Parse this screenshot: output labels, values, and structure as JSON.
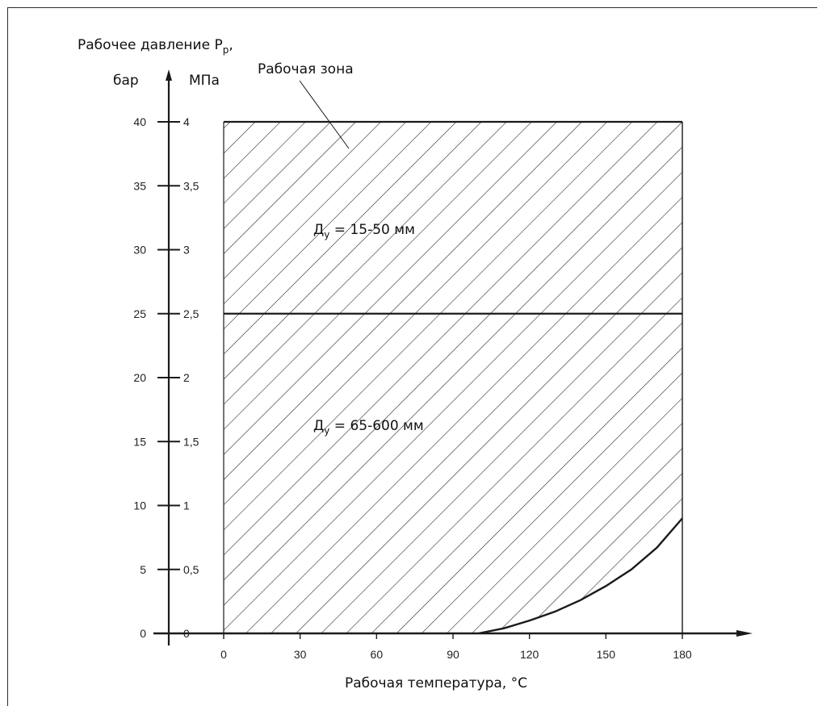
{
  "chart_data": {
    "type": "area",
    "y_axis_title": "Рабочее давление P",
    "y_axis_title_sub": "p",
    "y_axis_title_suffix": ",",
    "y_unit_left": "бар",
    "y_unit_right": "МПа",
    "x_axis_title": "Рабочая температура, °C",
    "zone_label": "Рабочая зона",
    "y_ticks_bar": [
      "0",
      "5",
      "10",
      "15",
      "20",
      "25",
      "30",
      "35",
      "40"
    ],
    "y_ticks_mpa": [
      "0",
      "0,5",
      "1",
      "1,5",
      "2",
      "2,5",
      "3",
      "3,5",
      "4"
    ],
    "x_ticks": [
      "0",
      "30",
      "60",
      "90",
      "120",
      "150",
      "180"
    ],
    "xlim": [
      0,
      180
    ],
    "ylim": [
      0,
      40
    ],
    "grid": false,
    "regions": [
      {
        "name_main": "Д",
        "name_sub": "у",
        "name_rest": " = 15-50 мм",
        "y_range_bar": [
          25,
          40
        ],
        "x_range": [
          0,
          180
        ]
      },
      {
        "name_main": "Д",
        "name_sub": "у",
        "name_rest": " = 65-600 мм",
        "y_range_bar": [
          0,
          25
        ],
        "x_range": [
          0,
          180
        ]
      }
    ],
    "excluded_boundary": {
      "x": [
        100,
        110,
        120,
        130,
        140,
        150,
        160,
        170,
        180
      ],
      "y": [
        0,
        0.4,
        1.0,
        1.7,
        2.6,
        3.7,
        5.0,
        6.7,
        9.0
      ]
    }
  }
}
